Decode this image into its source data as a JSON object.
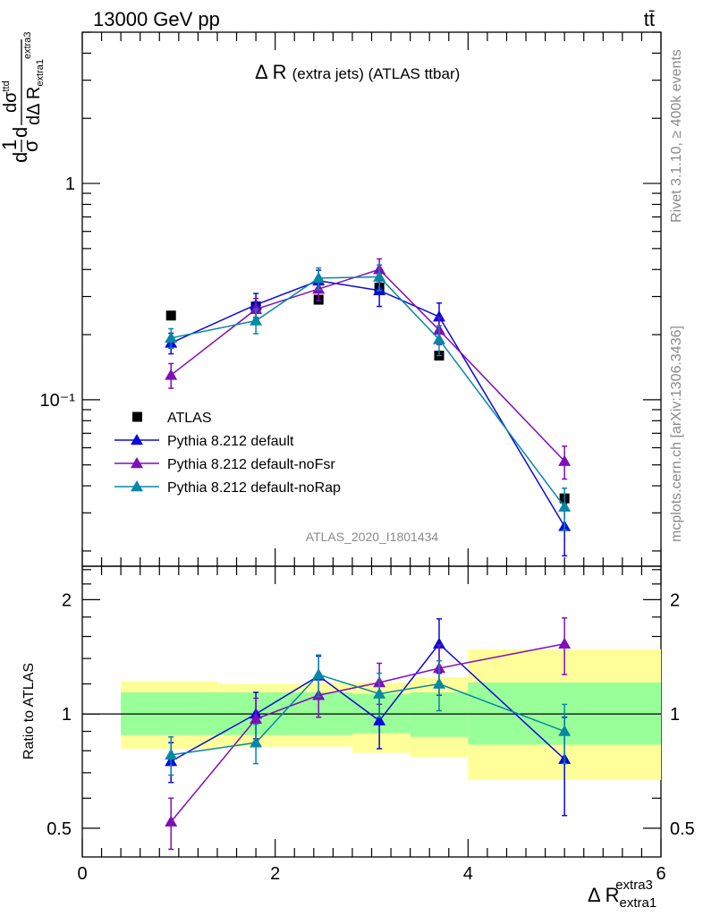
{
  "header": {
    "left": "13000 GeV pp",
    "right": "tt̄"
  },
  "side_text": {
    "rivet": "Rivet 3.1.10, ≥ 400k events",
    "mcplots": "mcplots.cern.ch [arXiv:1306.3436]"
  },
  "watermark": "ATLAS_2020_I1801434",
  "chart_data": [
    {
      "type": "line",
      "panel": "main",
      "title": "Δ R (extra jets) (ATLAS ttbar)",
      "ylabel": "d(1/σ dσ^ttd)/dΔR_extra1^extra3",
      "yscale": "log",
      "ylim": [
        0.017,
        5.0
      ],
      "xlim": [
        0,
        6
      ],
      "grid": false,
      "legend_position": "bottom-left",
      "yticks": [
        {
          "value": 1,
          "label": "1"
        },
        {
          "value": 0.1,
          "label": "10⁻¹"
        }
      ],
      "data": {
        "name": "ATLAS",
        "marker": "square",
        "color": "#000000",
        "x": [
          0.92,
          1.8,
          2.45,
          3.08,
          3.7,
          5.0
        ],
        "y": [
          0.245,
          0.27,
          0.29,
          0.33,
          0.16,
          0.035
        ]
      },
      "series": [
        {
          "name": "Pythia 8.212 default",
          "color": "#0a0adc",
          "x": [
            0.92,
            1.8,
            2.45,
            3.08,
            3.7,
            5.0
          ],
          "y": [
            0.183,
            0.275,
            0.355,
            0.32,
            0.242,
            0.026
          ],
          "err": [
            0.02,
            0.035,
            0.042,
            0.05,
            0.038,
            0.007
          ]
        },
        {
          "name": "Pythia 8.212 default-noFsr",
          "color": "#7f0fb8",
          "x": [
            0.92,
            1.8,
            2.45,
            3.08,
            3.7,
            5.0
          ],
          "y": [
            0.13,
            0.262,
            0.325,
            0.4,
            0.21,
            0.052
          ],
          "err": [
            0.017,
            0.032,
            0.038,
            0.048,
            0.03,
            0.009
          ]
        },
        {
          "name": "Pythia 8.212 default-noRap",
          "color": "#0787a6",
          "x": [
            0.92,
            1.8,
            2.45,
            3.08,
            3.7,
            5.0
          ],
          "y": [
            0.193,
            0.232,
            0.365,
            0.37,
            0.19,
            0.032
          ],
          "err": [
            0.02,
            0.03,
            0.042,
            0.05,
            0.03,
            0.007
          ]
        }
      ]
    },
    {
      "type": "line",
      "panel": "ratio",
      "ylabel": "Ratio to ATLAS",
      "xlabel": "Δ R_extra1^extra3",
      "yscale": "log",
      "ylim": [
        0.42,
        2.45
      ],
      "xlim": [
        0,
        6
      ],
      "xticks": [
        0,
        2,
        4,
        6
      ],
      "yticks": [
        0.5,
        1,
        2
      ],
      "reference_line": 1,
      "bands": [
        {
          "x0": 0.4,
          "x1": 1.4,
          "inner": [
            0.88,
            1.14
          ],
          "outer": [
            0.81,
            1.22
          ]
        },
        {
          "x0": 1.4,
          "x1": 2.3,
          "inner": [
            0.88,
            1.14
          ],
          "outer": [
            0.82,
            1.2
          ]
        },
        {
          "x0": 2.3,
          "x1": 2.8,
          "inner": [
            0.88,
            1.14
          ],
          "outer": [
            0.82,
            1.21
          ]
        },
        {
          "x0": 2.8,
          "x1": 3.4,
          "inner": [
            0.89,
            1.13
          ],
          "outer": [
            0.79,
            1.21
          ]
        },
        {
          "x0": 3.4,
          "x1": 4.0,
          "inner": [
            0.87,
            1.14
          ],
          "outer": [
            0.77,
            1.25
          ]
        },
        {
          "x0": 4.0,
          "x1": 6.0,
          "inner": [
            0.83,
            1.21
          ],
          "outer": [
            0.67,
            1.48
          ]
        }
      ],
      "series": [
        {
          "name": "Pythia 8.212 default",
          "color": "#0a0adc",
          "x": [
            0.92,
            1.8,
            2.45,
            3.08,
            3.7,
            5.0
          ],
          "y": [
            0.75,
            1.0,
            1.26,
            0.96,
            1.53,
            0.76
          ],
          "err": [
            0.09,
            0.14,
            0.16,
            0.15,
            0.25,
            0.22
          ]
        },
        {
          "name": "Pythia 8.212 default-noFsr",
          "color": "#7f0fb8",
          "x": [
            0.92,
            1.8,
            2.45,
            3.08,
            3.7,
            5.0
          ],
          "y": [
            0.52,
            0.97,
            1.12,
            1.21,
            1.32,
            1.53
          ],
          "err": [
            0.08,
            0.13,
            0.14,
            0.15,
            0.2,
            0.26
          ]
        },
        {
          "name": "Pythia 8.212 default-noRap",
          "color": "#0787a6",
          "x": [
            0.92,
            1.8,
            2.45,
            3.08,
            3.7,
            5.0
          ],
          "y": [
            0.78,
            0.84,
            1.27,
            1.13,
            1.2,
            0.9
          ],
          "err": [
            0.09,
            0.1,
            0.16,
            0.15,
            0.18,
            0.16
          ]
        }
      ]
    }
  ]
}
